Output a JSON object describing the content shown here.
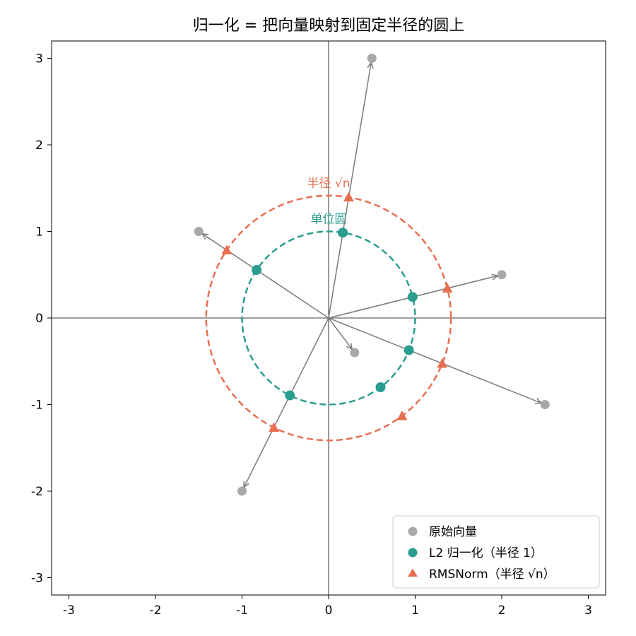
{
  "chart_data": {
    "type": "scatter",
    "title": "归一化 = 把向量映射到固定半径的圆上",
    "xlabel": "",
    "ylabel": "",
    "xlim": [
      -3.2,
      3.2
    ],
    "ylim": [
      -3.2,
      3.2
    ],
    "xticks": [
      -3,
      -2,
      -1,
      0,
      1,
      2,
      3
    ],
    "yticks": [
      -3,
      -2,
      -1,
      0,
      1,
      2,
      3
    ],
    "tick_labels": [
      "-3",
      "-2",
      "-1",
      "0",
      "1",
      "2",
      "3"
    ],
    "grid": false,
    "legend_position": "bottom-right",
    "vectors": [
      {
        "x": 0.5,
        "y": 3.0
      },
      {
        "x": -1.5,
        "y": 1.0
      },
      {
        "x": 2.0,
        "y": 0.5
      },
      {
        "x": 0.3,
        "y": -0.4
      },
      {
        "x": 2.5,
        "y": -1.0
      },
      {
        "x": -1.0,
        "y": -2.0
      }
    ],
    "series": [
      {
        "name": "原始向量",
        "marker": "circle",
        "color": "#999999",
        "points": [
          [
            0.5,
            3.0
          ],
          [
            -1.5,
            1.0
          ],
          [
            2.0,
            0.5
          ],
          [
            0.3,
            -0.4
          ],
          [
            2.5,
            -1.0
          ],
          [
            -1.0,
            -2.0
          ]
        ]
      },
      {
        "name": "L2 归一化（半径 1）",
        "marker": "circle",
        "color": "#2a9d8f",
        "points": [
          [
            0.164,
            0.986
          ],
          [
            -0.832,
            0.555
          ],
          [
            0.97,
            0.243
          ],
          [
            0.6,
            -0.8
          ],
          [
            0.928,
            -0.371
          ],
          [
            -0.447,
            -0.894
          ]
        ]
      },
      {
        "name": "RMSNorm（半径 √n）",
        "marker": "triangle",
        "color": "#e76f51",
        "points": [
          [
            0.232,
            1.395
          ],
          [
            -1.177,
            0.784
          ],
          [
            1.372,
            0.343
          ],
          [
            0.849,
            -1.131
          ],
          [
            1.313,
            -0.525
          ],
          [
            -0.632,
            -1.265
          ]
        ]
      }
    ],
    "circles": [
      {
        "radius": 1.0,
        "color": "#2a9d8f",
        "label": "单位圆"
      },
      {
        "radius": 1.414,
        "color": "#e76f51",
        "label": "半径 √n"
      }
    ],
    "arrow_color": "#808080"
  }
}
